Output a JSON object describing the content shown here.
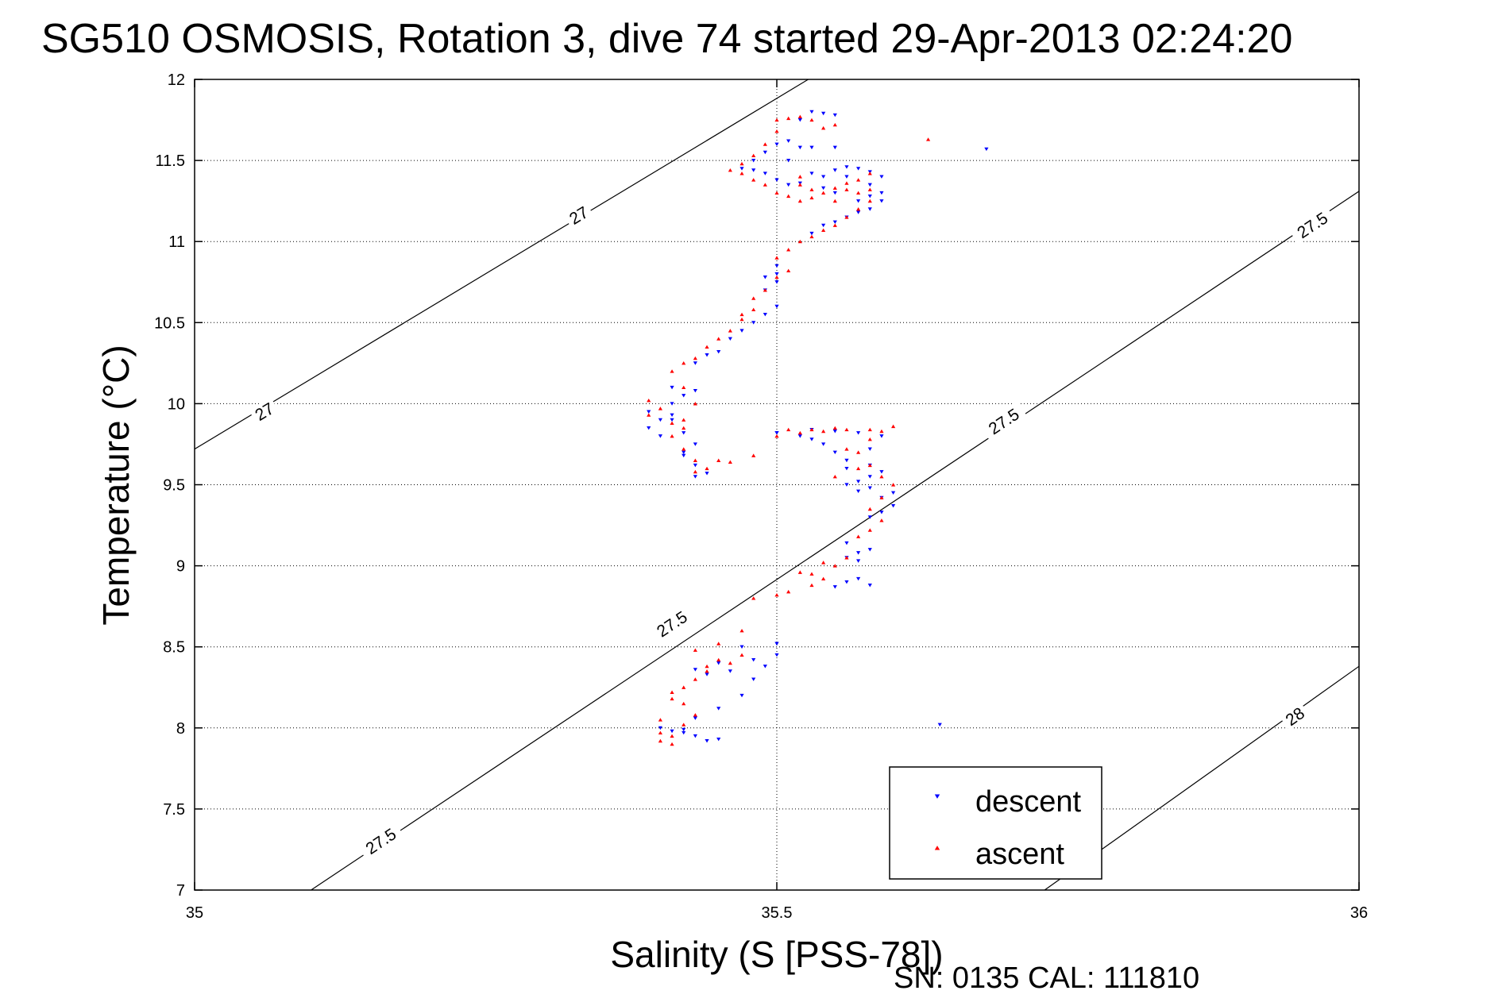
{
  "title": "SG510 OSMOSIS, Rotation 3, dive 74 started 29-Apr-2013 02:24:20",
  "footer": "SN: 0135  CAL: 111810",
  "colors": {
    "descent": "#0000ff",
    "ascent": "#ff0000",
    "axis": "#000000",
    "grid": "#000000"
  },
  "chart_data": {
    "type": "scatter",
    "title": "SG510 OSMOSIS, Rotation 3, dive 74 started 29-Apr-2013 02:24:20",
    "xlabel": "Salinity (S [PSS-78])",
    "ylabel": "Temperature (°C)",
    "xlim": [
      35,
      36
    ],
    "ylim": [
      7,
      12
    ],
    "xticks": [
      "35",
      "35.5",
      "36"
    ],
    "yticks": [
      "7",
      "7.5",
      "8",
      "8.5",
      "9",
      "9.5",
      "10",
      "10.5",
      "11",
      "11.5",
      "12"
    ],
    "grid": true,
    "legend_position": "bottom-right",
    "legend": [
      "descent",
      "ascent"
    ],
    "contours": [
      {
        "label": "27",
        "points": [
          [
            35.0,
            9.72
          ],
          [
            35.527,
            12.0
          ]
        ],
        "label_positions": [
          [
            35.06,
            9.95
          ],
          [
            35.33,
            11.16
          ]
        ]
      },
      {
        "label": "27.5",
        "points": [
          [
            35.1,
            7.0
          ],
          [
            36.0,
            11.31
          ]
        ],
        "label_positions": [
          [
            35.16,
            7.3
          ],
          [
            35.41,
            8.64
          ],
          [
            35.695,
            9.89
          ],
          [
            35.96,
            11.1
          ]
        ]
      },
      {
        "label": "28",
        "points": [
          [
            35.73,
            7.0
          ],
          [
            36.0,
            8.38
          ]
        ],
        "label_positions": [
          [
            35.945,
            8.07
          ]
        ]
      }
    ],
    "series": [
      {
        "name": "descent",
        "marker": "triangle-down",
        "points": [
          [
            35.64,
            8.02
          ],
          [
            35.41,
            7.98
          ],
          [
            35.42,
            7.97
          ],
          [
            35.43,
            7.95
          ],
          [
            35.45,
            7.93
          ],
          [
            35.43,
            8.06
          ],
          [
            35.45,
            8.12
          ],
          [
            35.47,
            8.2
          ],
          [
            35.48,
            8.3
          ],
          [
            35.49,
            8.38
          ],
          [
            35.46,
            8.35
          ],
          [
            35.44,
            8.33
          ],
          [
            35.5,
            8.45
          ],
          [
            35.47,
            8.5
          ],
          [
            35.5,
            8.52
          ],
          [
            35.48,
            8.42
          ],
          [
            35.43,
            8.36
          ],
          [
            35.45,
            8.4
          ],
          [
            35.4,
            8.0
          ],
          [
            35.44,
            7.92
          ],
          [
            35.42,
            7.99
          ],
          [
            35.55,
            8.87
          ],
          [
            35.56,
            8.9
          ],
          [
            35.57,
            8.92
          ],
          [
            35.58,
            8.88
          ],
          [
            35.56,
            9.05
          ],
          [
            35.57,
            9.08
          ],
          [
            35.58,
            9.1
          ],
          [
            35.56,
            9.14
          ],
          [
            35.57,
            9.03
          ],
          [
            35.58,
            9.3
          ],
          [
            35.59,
            9.33
          ],
          [
            35.6,
            9.37
          ],
          [
            35.59,
            9.42
          ],
          [
            35.6,
            9.45
          ],
          [
            35.58,
            9.48
          ],
          [
            35.57,
            9.52
          ],
          [
            35.56,
            9.5
          ],
          [
            35.58,
            9.55
          ],
          [
            35.59,
            9.58
          ],
          [
            35.58,
            9.62
          ],
          [
            35.56,
            9.65
          ],
          [
            35.55,
            9.7
          ],
          [
            35.54,
            9.75
          ],
          [
            35.53,
            9.78
          ],
          [
            35.52,
            9.8
          ],
          [
            35.5,
            9.82
          ],
          [
            35.53,
            9.84
          ],
          [
            35.55,
            9.83
          ],
          [
            35.57,
            9.82
          ],
          [
            35.59,
            9.8
          ],
          [
            35.58,
            9.72
          ],
          [
            35.56,
            9.6
          ],
          [
            35.57,
            9.46
          ],
          [
            35.4,
            9.8
          ],
          [
            35.39,
            9.85
          ],
          [
            35.4,
            9.9
          ],
          [
            35.39,
            9.95
          ],
          [
            35.41,
            10.0
          ],
          [
            35.42,
            10.05
          ],
          [
            35.41,
            9.9
          ],
          [
            35.42,
            9.82
          ],
          [
            35.43,
            9.75
          ],
          [
            35.42,
            9.68
          ],
          [
            35.43,
            9.62
          ],
          [
            35.44,
            9.57
          ],
          [
            35.43,
            9.55
          ],
          [
            35.42,
            9.7
          ],
          [
            35.41,
            9.93
          ],
          [
            35.43,
            10.08
          ],
          [
            35.41,
            10.1
          ],
          [
            35.43,
            10.25
          ],
          [
            35.44,
            10.3
          ],
          [
            35.45,
            10.32
          ],
          [
            35.46,
            10.4
          ],
          [
            35.47,
            10.45
          ],
          [
            35.48,
            10.5
          ],
          [
            35.49,
            10.55
          ],
          [
            35.5,
            10.6
          ],
          [
            35.49,
            10.7
          ],
          [
            35.5,
            10.75
          ],
          [
            35.5,
            10.8
          ],
          [
            35.5,
            10.85
          ],
          [
            35.49,
            10.78
          ],
          [
            35.53,
            11.05
          ],
          [
            35.54,
            11.1
          ],
          [
            35.55,
            11.12
          ],
          [
            35.56,
            11.15
          ],
          [
            35.57,
            11.18
          ],
          [
            35.58,
            11.2
          ],
          [
            35.57,
            11.25
          ],
          [
            35.58,
            11.28
          ],
          [
            35.59,
            11.3
          ],
          [
            35.58,
            11.35
          ],
          [
            35.59,
            11.4
          ],
          [
            35.58,
            11.43
          ],
          [
            35.57,
            11.45
          ],
          [
            35.56,
            11.46
          ],
          [
            35.55,
            11.44
          ],
          [
            35.54,
            11.4
          ],
          [
            35.52,
            11.36
          ],
          [
            35.51,
            11.35
          ],
          [
            35.5,
            11.38
          ],
          [
            35.49,
            11.42
          ],
          [
            35.48,
            11.44
          ],
          [
            35.47,
            11.45
          ],
          [
            35.48,
            11.5
          ],
          [
            35.49,
            11.55
          ],
          [
            35.5,
            11.6
          ],
          [
            35.51,
            11.62
          ],
          [
            35.52,
            11.58
          ],
          [
            35.53,
            11.58
          ],
          [
            35.55,
            11.58
          ],
          [
            35.52,
            11.75
          ],
          [
            35.53,
            11.8
          ],
          [
            35.54,
            11.79
          ],
          [
            35.55,
            11.78
          ],
          [
            35.51,
            11.5
          ],
          [
            35.53,
            11.42
          ],
          [
            35.54,
            11.33
          ],
          [
            35.55,
            11.3
          ],
          [
            35.56,
            11.4
          ],
          [
            35.59,
            11.25
          ],
          [
            35.68,
            11.57
          ],
          [
            35.5,
            9.82
          ],
          [
            35.5,
            8.52
          ]
        ]
      },
      {
        "name": "ascent",
        "marker": "triangle-up",
        "points": [
          [
            35.4,
            7.92
          ],
          [
            35.41,
            7.95
          ],
          [
            35.4,
            7.97
          ],
          [
            35.42,
            8.02
          ],
          [
            35.43,
            8.08
          ],
          [
            35.42,
            8.15
          ],
          [
            35.41,
            8.22
          ],
          [
            35.43,
            8.3
          ],
          [
            35.44,
            8.38
          ],
          [
            35.45,
            8.42
          ],
          [
            35.46,
            8.4
          ],
          [
            35.47,
            8.45
          ],
          [
            35.45,
            8.52
          ],
          [
            35.47,
            8.6
          ],
          [
            35.43,
            8.48
          ],
          [
            35.44,
            8.35
          ],
          [
            35.42,
            8.25
          ],
          [
            35.41,
            8.18
          ],
          [
            35.4,
            8.05
          ],
          [
            35.41,
            7.9
          ],
          [
            35.48,
            8.8
          ],
          [
            35.5,
            8.82
          ],
          [
            35.51,
            8.84
          ],
          [
            35.53,
            8.88
          ],
          [
            35.54,
            8.92
          ],
          [
            35.52,
            8.96
          ],
          [
            35.53,
            8.95
          ],
          [
            35.55,
            9.0
          ],
          [
            35.56,
            9.05
          ],
          [
            35.54,
            9.02
          ],
          [
            35.57,
            9.18
          ],
          [
            35.58,
            9.22
          ],
          [
            35.59,
            9.28
          ],
          [
            35.58,
            9.35
          ],
          [
            35.59,
            9.42
          ],
          [
            35.6,
            9.5
          ],
          [
            35.59,
            9.55
          ],
          [
            35.58,
            9.62
          ],
          [
            35.57,
            9.7
          ],
          [
            35.58,
            9.78
          ],
          [
            35.59,
            9.83
          ],
          [
            35.6,
            9.86
          ],
          [
            35.58,
            9.84
          ],
          [
            35.56,
            9.84
          ],
          [
            35.55,
            9.85
          ],
          [
            35.54,
            9.83
          ],
          [
            35.53,
            9.84
          ],
          [
            35.51,
            9.84
          ],
          [
            35.52,
            9.82
          ],
          [
            35.56,
            9.72
          ],
          [
            35.57,
            9.6
          ],
          [
            35.55,
            9.55
          ],
          [
            35.39,
            10.02
          ],
          [
            35.4,
            9.97
          ],
          [
            35.39,
            9.93
          ],
          [
            35.41,
            9.88
          ],
          [
            35.42,
            9.85
          ],
          [
            35.41,
            9.8
          ],
          [
            35.42,
            9.72
          ],
          [
            35.43,
            9.65
          ],
          [
            35.44,
            9.6
          ],
          [
            35.43,
            9.58
          ],
          [
            35.45,
            9.65
          ],
          [
            35.42,
            9.9
          ],
          [
            35.43,
            10.0
          ],
          [
            35.42,
            10.1
          ],
          [
            35.41,
            10.2
          ],
          [
            35.42,
            10.25
          ],
          [
            35.43,
            10.28
          ],
          [
            35.44,
            10.35
          ],
          [
            35.45,
            10.4
          ],
          [
            35.46,
            10.45
          ],
          [
            35.47,
            10.52
          ],
          [
            35.48,
            10.58
          ],
          [
            35.47,
            10.55
          ],
          [
            35.48,
            10.65
          ],
          [
            35.49,
            10.7
          ],
          [
            35.5,
            10.78
          ],
          [
            35.51,
            10.82
          ],
          [
            35.5,
            10.9
          ],
          [
            35.51,
            10.95
          ],
          [
            35.52,
            11.0
          ],
          [
            35.53,
            11.03
          ],
          [
            35.54,
            11.07
          ],
          [
            35.55,
            11.1
          ],
          [
            35.56,
            11.15
          ],
          [
            35.57,
            11.2
          ],
          [
            35.58,
            11.25
          ],
          [
            35.57,
            11.3
          ],
          [
            35.56,
            11.32
          ],
          [
            35.57,
            11.38
          ],
          [
            35.58,
            11.42
          ],
          [
            35.56,
            11.36
          ],
          [
            35.55,
            11.33
          ],
          [
            35.54,
            11.3
          ],
          [
            35.53,
            11.27
          ],
          [
            35.52,
            11.25
          ],
          [
            35.51,
            11.28
          ],
          [
            35.5,
            11.3
          ],
          [
            35.49,
            11.35
          ],
          [
            35.48,
            11.38
          ],
          [
            35.47,
            11.42
          ],
          [
            35.46,
            11.44
          ],
          [
            35.47,
            11.48
          ],
          [
            35.48,
            11.53
          ],
          [
            35.49,
            11.6
          ],
          [
            35.5,
            11.68
          ],
          [
            35.5,
            11.75
          ],
          [
            35.51,
            11.76
          ],
          [
            35.52,
            11.77
          ],
          [
            35.53,
            11.75
          ],
          [
            35.54,
            11.7
          ],
          [
            35.55,
            11.72
          ],
          [
            35.52,
            11.35
          ],
          [
            35.53,
            11.32
          ],
          [
            35.52,
            11.4
          ],
          [
            35.55,
            11.25
          ],
          [
            35.58,
            11.32
          ],
          [
            35.63,
            11.63
          ],
          [
            35.48,
            9.68
          ],
          [
            35.46,
            9.64
          ],
          [
            35.5,
            9.8
          ]
        ]
      }
    ]
  }
}
